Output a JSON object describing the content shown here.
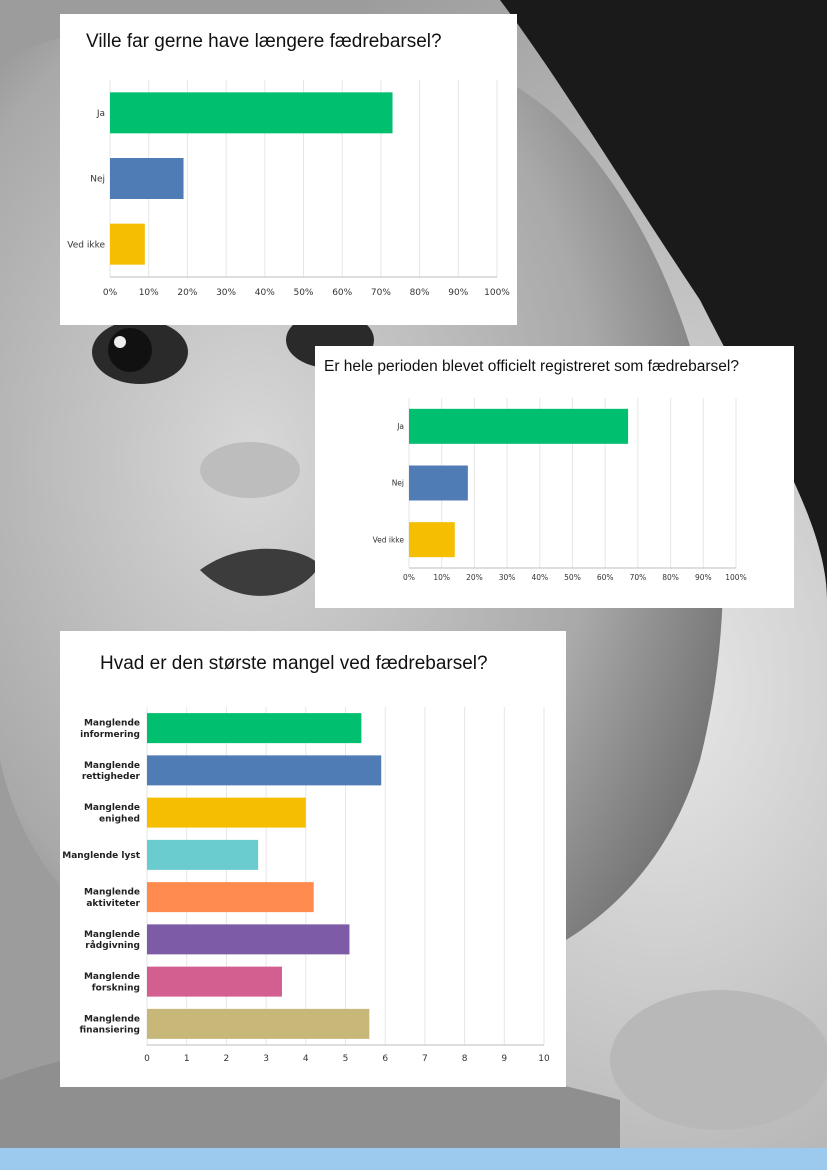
{
  "background": {
    "description_icon": "baby-photo",
    "strip_color": "#9cc9ee"
  },
  "chart_data": [
    {
      "type": "bar",
      "orientation": "horizontal",
      "title": "Ville far gerne have længere fædrebarsel?",
      "categories": [
        "Ja",
        "Nej",
        "Ved ikke"
      ],
      "values": [
        73,
        19,
        9
      ],
      "colors": [
        "#00bf6f",
        "#507cb6",
        "#f5be00"
      ],
      "xlim": [
        0,
        100
      ],
      "xticks": [
        "0%",
        "10%",
        "20%",
        "30%",
        "40%",
        "50%",
        "60%",
        "70%",
        "80%",
        "90%",
        "100%"
      ],
      "grid": true
    },
    {
      "type": "bar",
      "orientation": "horizontal",
      "title": "Er hele perioden blevet officielt registreret som fædrebarsel?",
      "categories": [
        "Ja",
        "Nej",
        "Ved ikke"
      ],
      "values": [
        67,
        18,
        14
      ],
      "colors": [
        "#00bf6f",
        "#507cb6",
        "#f5be00"
      ],
      "xlim": [
        0,
        100
      ],
      "xticks": [
        "0%",
        "10%",
        "20%",
        "30%",
        "40%",
        "50%",
        "60%",
        "70%",
        "80%",
        "90%",
        "100%"
      ],
      "grid": true
    },
    {
      "type": "bar",
      "orientation": "horizontal",
      "title": "Hvad er den største mangel ved fædrebarsel?",
      "categories": [
        [
          "Manglende",
          "informering"
        ],
        [
          "Manglende",
          "rettigheder"
        ],
        [
          "Manglende",
          "enighed"
        ],
        [
          "Manglende lyst"
        ],
        [
          "Manglende",
          "aktiviteter"
        ],
        [
          "Manglende",
          "rådgivning"
        ],
        [
          "Manglende",
          "forskning"
        ],
        [
          "Manglende",
          "finansiering"
        ]
      ],
      "values": [
        5.4,
        5.9,
        4.0,
        2.8,
        4.2,
        5.1,
        3.4,
        5.6
      ],
      "colors": [
        "#00bf6f",
        "#507cb6",
        "#f5be00",
        "#6bccd0",
        "#ff8b4f",
        "#7d5ba6",
        "#d25f90",
        "#c7b879"
      ],
      "xlim": [
        0,
        10
      ],
      "xticks": [
        "0",
        "1",
        "2",
        "3",
        "4",
        "5",
        "6",
        "7",
        "8",
        "9",
        "10"
      ],
      "grid": true
    }
  ]
}
